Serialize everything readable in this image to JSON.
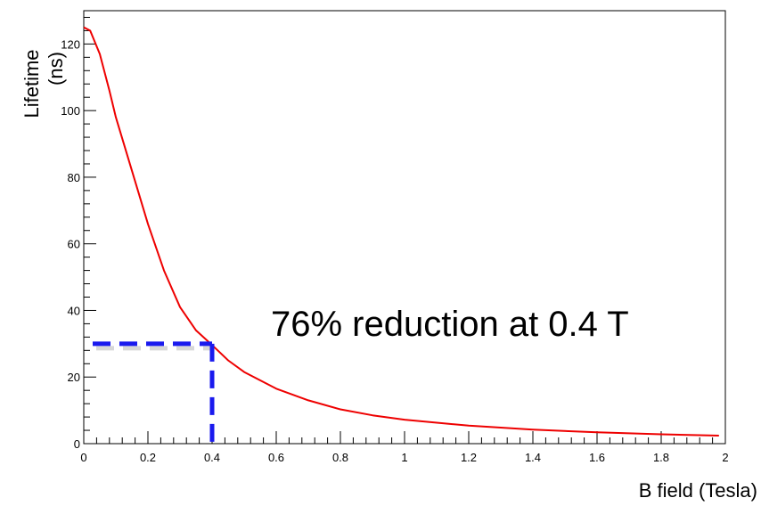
{
  "chart_data": {
    "type": "line",
    "title": "",
    "xlabel": "B field (Tesla)",
    "ylabel_line1": "Lifetime",
    "ylabel_line2": "(ns)",
    "xlim": [
      0,
      2
    ],
    "ylim": [
      0,
      130
    ],
    "x_major_ticks": [
      0,
      0.2,
      0.4,
      0.6,
      0.8,
      1,
      1.2,
      1.4,
      1.6,
      1.8,
      2
    ],
    "x_tick_labels": [
      "0",
      "0.2",
      "0.4",
      "0.6",
      "0.8",
      "1",
      "1.2",
      "1.4",
      "1.6",
      "1.8",
      "2"
    ],
    "y_major_ticks": [
      0,
      20,
      40,
      60,
      80,
      100,
      120
    ],
    "y_tick_labels": [
      "0",
      "20",
      "40",
      "60",
      "80",
      "100",
      "120"
    ],
    "grid": false,
    "legend": "none",
    "series": [
      {
        "color": "#ee0000",
        "x": [
          0,
          0.02,
          0.05,
          0.08,
          0.1,
          0.15,
          0.2,
          0.25,
          0.3,
          0.35,
          0.4,
          0.45,
          0.5,
          0.6,
          0.7,
          0.8,
          0.9,
          1.0,
          1.2,
          1.4,
          1.6,
          1.8,
          1.98
        ],
        "y": [
          125,
          124,
          117,
          106,
          98,
          82,
          66,
          52,
          41,
          34,
          29.6,
          25,
          21.5,
          16.5,
          13,
          10.3,
          8.5,
          7.2,
          5.4,
          4.2,
          3.4,
          2.8,
          2.4
        ]
      }
    ],
    "annotations": {
      "text": "76% reduction at 0.4 T",
      "marker_x": 0.4,
      "marker_y": 30,
      "marker_color": "#1a1aee"
    }
  }
}
